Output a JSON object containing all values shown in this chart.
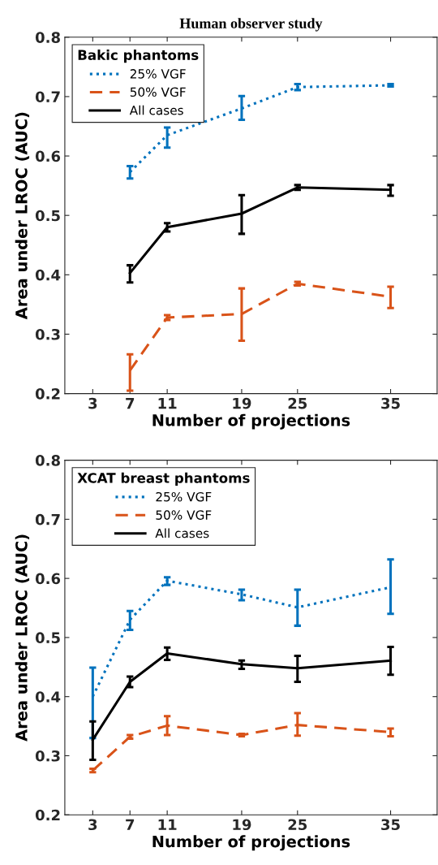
{
  "chart_data": [
    {
      "type": "line",
      "title": "Human observer study",
      "legend_title": "Bakic phantoms",
      "xlabel": "Number of projections",
      "ylabel": "Area under LROC (AUC)",
      "x": [
        7,
        11,
        19,
        25,
        35
      ],
      "xlim": [
        0,
        40
      ],
      "xticks": [
        3,
        7,
        11,
        19,
        25,
        35
      ],
      "ylim": [
        0.2,
        0.8
      ],
      "yticks": [
        0.2,
        0.3,
        0.4,
        0.5,
        0.6,
        0.7,
        0.8
      ],
      "grid": false,
      "legend": "top left",
      "marker": "none",
      "series": [
        {
          "name": "25% VGF",
          "color": "#0072bd",
          "line_style": "dotted",
          "values": [
            0.573,
            0.635,
            0.68,
            0.716,
            0.719
          ],
          "errors": [
            [
              0.562,
              0.583
            ],
            [
              0.614,
              0.648
            ],
            [
              0.661,
              0.701
            ],
            [
              0.711,
              0.721
            ],
            [
              0.717,
              0.721
            ]
          ]
        },
        {
          "name": "50% VGF",
          "color": "#d95319",
          "line_style": "dashed",
          "values": [
            0.239,
            0.328,
            0.334,
            0.385,
            0.363
          ],
          "errors": [
            [
              0.205,
              0.266
            ],
            [
              0.324,
              0.332
            ],
            [
              0.289,
              0.377
            ],
            [
              0.382,
              0.388
            ],
            [
              0.344,
              0.38
            ]
          ]
        },
        {
          "name": "All cases",
          "color": "#000000",
          "line_style": "solid",
          "values": [
            0.403,
            0.48,
            0.503,
            0.547,
            0.543
          ],
          "errors": [
            [
              0.387,
              0.416
            ],
            [
              0.473,
              0.487
            ],
            [
              0.469,
              0.534
            ],
            [
              0.543,
              0.551
            ],
            [
              0.533,
              0.551
            ]
          ]
        }
      ]
    },
    {
      "type": "line",
      "legend_title": "XCAT breast phantoms",
      "xlabel": "Number of projections",
      "ylabel": "Area under LROC (AUC)",
      "x": [
        3,
        7,
        11,
        19,
        25,
        35
      ],
      "xlim": [
        0,
        40
      ],
      "xticks": [
        3,
        7,
        11,
        19,
        25,
        35
      ],
      "ylim": [
        0.2,
        0.8
      ],
      "yticks": [
        0.2,
        0.3,
        0.4,
        0.5,
        0.6,
        0.7,
        0.8
      ],
      "grid": false,
      "legend": "top left",
      "marker": "none",
      "series": [
        {
          "name": "25% VGF",
          "color": "#0072bd",
          "line_style": "dotted",
          "values": [
            0.4,
            0.53,
            0.596,
            0.573,
            0.551,
            0.585
          ],
          "errors": [
            [
              0.33,
              0.449
            ],
            [
              0.513,
              0.545
            ],
            [
              0.589,
              0.602
            ],
            [
              0.563,
              0.581
            ],
            [
              0.52,
              0.581
            ],
            [
              0.54,
              0.632
            ]
          ]
        },
        {
          "name": "50% VGF",
          "color": "#d95319",
          "line_style": "dashed",
          "values": [
            0.275,
            0.332,
            0.351,
            0.335,
            0.352,
            0.34
          ],
          "errors": [
            [
              0.272,
              0.278
            ],
            [
              0.329,
              0.335
            ],
            [
              0.335,
              0.367
            ],
            [
              0.333,
              0.337
            ],
            [
              0.334,
              0.372
            ],
            [
              0.333,
              0.346
            ]
          ]
        },
        {
          "name": "All cases",
          "color": "#000000",
          "line_style": "solid",
          "values": [
            0.327,
            0.425,
            0.473,
            0.455,
            0.448,
            0.461
          ],
          "errors": [
            [
              0.293,
              0.358
            ],
            [
              0.416,
              0.434
            ],
            [
              0.462,
              0.483
            ],
            [
              0.447,
              0.461
            ],
            [
              0.425,
              0.469
            ],
            [
              0.437,
              0.484
            ]
          ]
        }
      ]
    }
  ]
}
